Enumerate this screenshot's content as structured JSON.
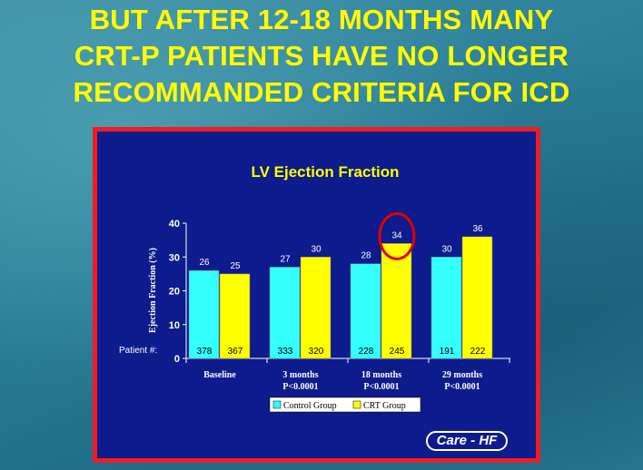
{
  "headline": [
    "BUT AFTER 12-18 MONTHS MANY",
    "CRT-P PATIENTS HAVE NO LONGER",
    "RECOMMANDED CRITERIA FOR ICD"
  ],
  "colors": {
    "headline": "#ffff00",
    "panel_border": "#ee1c24",
    "panel_bg": "#0d1b8c",
    "control": "#33ffff",
    "crt": "#ffff00",
    "highlight_circle": "#e00000"
  },
  "chart_data": {
    "type": "bar",
    "title": "LV Ejection Fraction",
    "ylabel": "Ejection Fraction (%)",
    "ylim": [
      0,
      40
    ],
    "yticks": [
      0,
      10,
      20,
      30,
      40
    ],
    "categories": [
      {
        "label": "Baseline",
        "sub": ""
      },
      {
        "label": "3 months",
        "sub": "P<0.0001"
      },
      {
        "label": "18 months",
        "sub": "P<0.0001"
      },
      {
        "label": "29 months",
        "sub": "P<0.0001"
      }
    ],
    "series": [
      {
        "name": "Control Group",
        "values": [
          26,
          27,
          28,
          30
        ],
        "patients": [
          378,
          333,
          228,
          191
        ]
      },
      {
        "name": "CRT Group",
        "values": [
          25,
          30,
          34,
          36
        ],
        "patients": [
          367,
          320,
          245,
          222
        ]
      }
    ],
    "patient_label": "Patient #:",
    "highlight": {
      "series": 1,
      "category": 2
    }
  },
  "logo": "Care - HF"
}
